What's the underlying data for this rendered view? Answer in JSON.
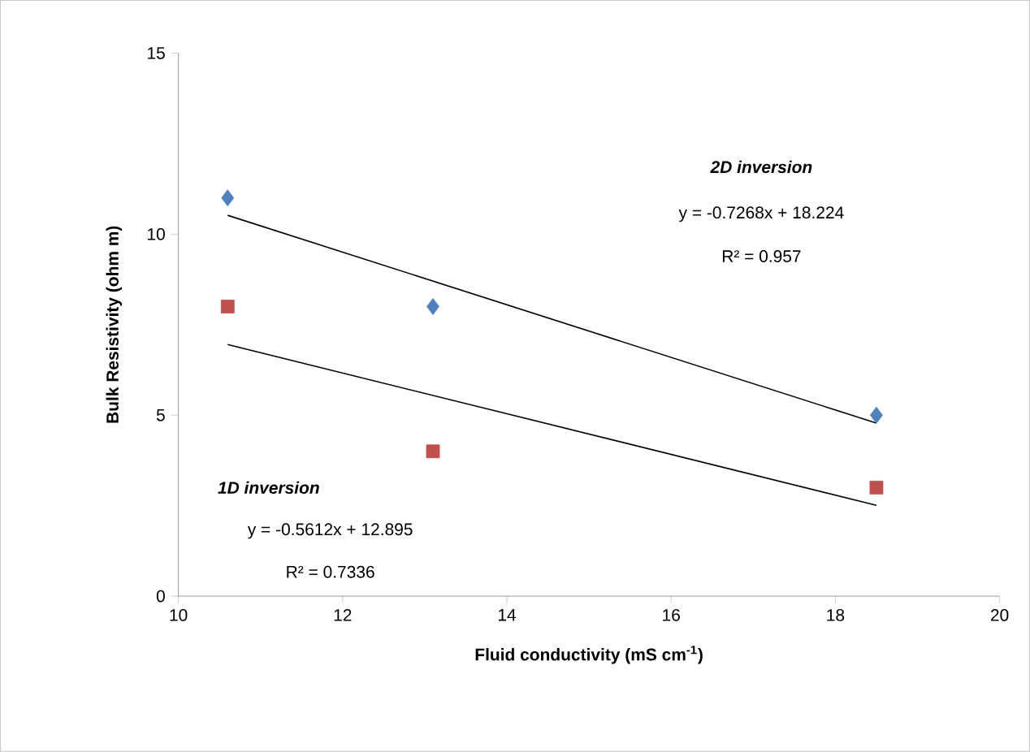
{
  "chart_data": {
    "type": "scatter",
    "xlabel": "Fluid conductivity  (mS cm$^{-1}$)",
    "ylabel": "Bulk Resistivity  (ohm m)",
    "xlim": [
      10,
      20
    ],
    "xticks": [
      10,
      12,
      14,
      16,
      18,
      20
    ],
    "ylim": [
      0,
      15
    ],
    "yticks": [
      0,
      5,
      10,
      15
    ],
    "grid": false,
    "series": [
      {
        "marker": "diamond",
        "color": "#4f81bd",
        "x": [
          10.6,
          13.1,
          18.5
        ],
        "values": [
          11,
          8,
          5
        ]
      },
      {
        "marker": "square",
        "color": "#c0504d",
        "x": [
          10.6,
          13.1,
          18.5
        ],
        "values": [
          8,
          4,
          3
        ]
      },
      {
        "type": "line",
        "marker": "none",
        "color": "#000000",
        "x": [
          10.6,
          18.5
        ],
        "values": [
          10.52,
          4.78
        ]
      },
      {
        "type": "line",
        "marker": "none",
        "color": "#000000",
        "x": [
          10.6,
          18.5
        ],
        "values": [
          6.95,
          2.51
        ]
      }
    ],
    "annotations": [
      "2D inversion",
      "y = -0.7268x + 18.224",
      "R² = 0.957",
      "1D inversion",
      "y = -0.5612x + 12.895",
      "R² = 0.7336"
    ]
  }
}
